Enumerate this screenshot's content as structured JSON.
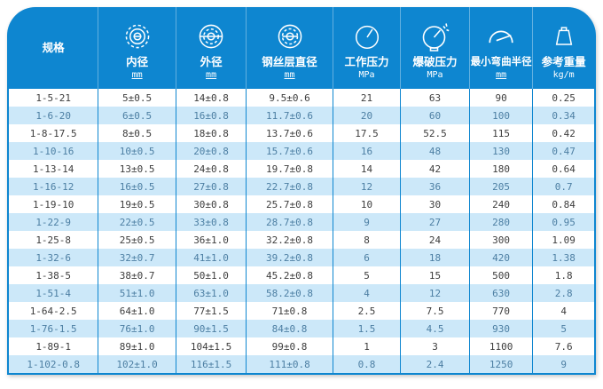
{
  "table": {
    "columns": [
      {
        "label": "规格",
        "unit": "",
        "icon": "spec"
      },
      {
        "label": "内径",
        "unit": "mm",
        "icon": "inner-diameter-icon"
      },
      {
        "label": "外径",
        "unit": "mm",
        "icon": "outer-diameter-icon"
      },
      {
        "label": "钢丝层直径",
        "unit": "mm",
        "icon": "wire-layer-diameter-icon"
      },
      {
        "label": "工作压力",
        "unit": "MPa",
        "icon": "working-pressure-gauge-icon"
      },
      {
        "label": "爆破压力",
        "unit": "MPa",
        "icon": "burst-pressure-gauge-icon"
      },
      {
        "label": "最小弯曲半径",
        "unit": "mm",
        "icon": "bend-radius-icon"
      },
      {
        "label": "参考重量",
        "unit": "kg/m",
        "icon": "weight-icon"
      }
    ],
    "rows": [
      [
        "1-5-21",
        "5±0.5",
        "14±0.8",
        "9.5±0.6",
        "21",
        "63",
        "90",
        "0.25"
      ],
      [
        "1-6-20",
        "6±0.5",
        "16±0.8",
        "11.7±0.6",
        "20",
        "60",
        "100",
        "0.34"
      ],
      [
        "1-8-17.5",
        "8±0.5",
        "18±0.8",
        "13.7±0.6",
        "17.5",
        "52.5",
        "115",
        "0.42"
      ],
      [
        "1-10-16",
        "10±0.5",
        "20±0.8",
        "15.7±0.6",
        "16",
        "48",
        "130",
        "0.47"
      ],
      [
        "1-13-14",
        "13±0.5",
        "24±0.8",
        "19.7±0.8",
        "14",
        "42",
        "180",
        "0.64"
      ],
      [
        "1-16-12",
        "16±0.5",
        "27±0.8",
        "22.7±0.8",
        "12",
        "36",
        "205",
        "0.7"
      ],
      [
        "1-19-10",
        "19±0.5",
        "30±0.8",
        "25.7±0.8",
        "10",
        "30",
        "240",
        "0.84"
      ],
      [
        "1-22-9",
        "22±0.5",
        "33±0.8",
        "28.7±0.8",
        "9",
        "27",
        "280",
        "0.95"
      ],
      [
        "1-25-8",
        "25±0.5",
        "36±1.0",
        "32.2±0.8",
        "8",
        "24",
        "300",
        "1.09"
      ],
      [
        "1-32-6",
        "32±0.7",
        "41±1.0",
        "39.2±0.8",
        "6",
        "18",
        "420",
        "1.38"
      ],
      [
        "1-38-5",
        "38±0.7",
        "50±1.0",
        "45.2±0.8",
        "5",
        "15",
        "500",
        "1.8"
      ],
      [
        "1-51-4",
        "51±1.0",
        "63±1.0",
        "58.2±0.8",
        "4",
        "12",
        "630",
        "2.8"
      ],
      [
        "1-64-2.5",
        "64±1.0",
        "77±1.5",
        "71±0.8",
        "2.5",
        "7.5",
        "770",
        "4"
      ],
      [
        "1-76-1.5",
        "76±1.0",
        "90±1.5",
        "84±0.8",
        "1.5",
        "4.5",
        "930",
        "5"
      ],
      [
        "1-89-1",
        "89±1.0",
        "104±1.5",
        "99±0.8",
        "1",
        "3",
        "1100",
        "7.6"
      ],
      [
        "1-102-0.8",
        "102±1.0",
        "116±1.5",
        "111±0.8",
        "0.8",
        "2.4",
        "1250",
        "9"
      ]
    ]
  },
  "colors": {
    "header_blue": "#0e86d0",
    "stripe_blue": "#cce8f9",
    "border_blue": "#0e86d0",
    "text_dark": "#3d3d3d",
    "text_striped_row": "#4d7fa3"
  }
}
